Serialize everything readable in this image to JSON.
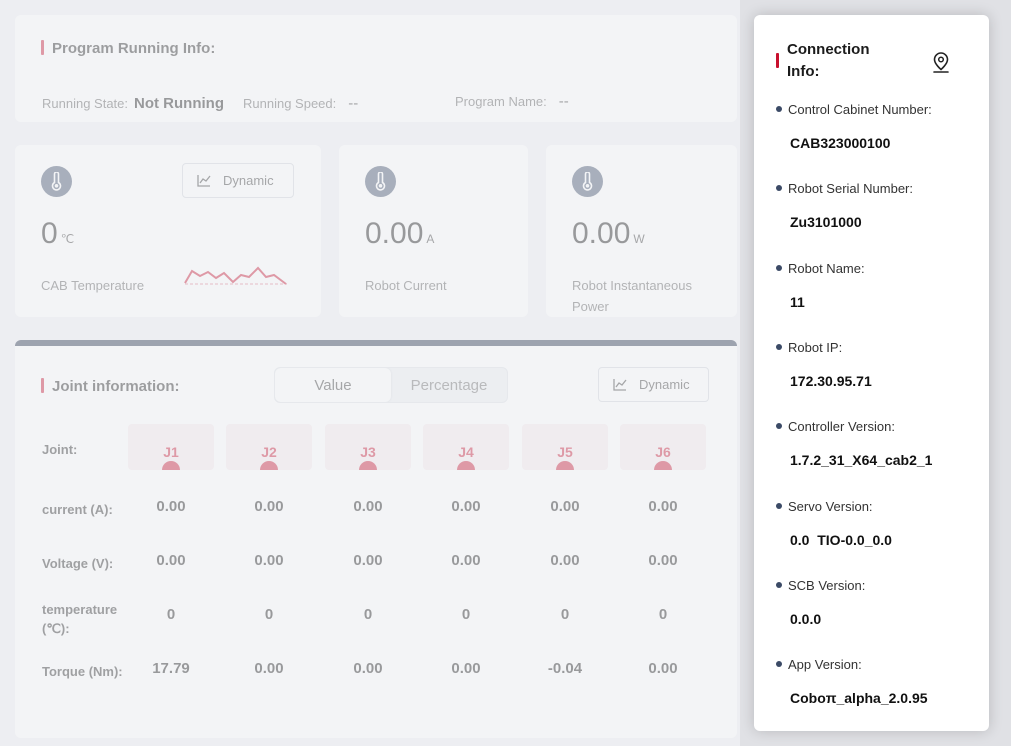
{
  "program": {
    "title": "Program Running Info:",
    "running_state_label": "Running State:",
    "running_state_value": "Not Running",
    "running_speed_label": "Running Speed:",
    "running_speed_value": "--",
    "program_name_label": "Program Name:",
    "program_name_value": "--"
  },
  "metrics": {
    "cab_temperature": {
      "value": "0",
      "unit": "℃",
      "label": "CAB Temperature",
      "button": "Dynamic"
    },
    "robot_current": {
      "value": "0.00",
      "unit": "A",
      "label": "Robot Current"
    },
    "robot_power": {
      "value": "0.00",
      "unit": "W",
      "label": "Robot Instantaneous Power"
    }
  },
  "joint": {
    "title": "Joint information:",
    "toggle": {
      "value_label": "Value",
      "percentage_label": "Percentage",
      "selected": "Value"
    },
    "dynamic_button": "Dynamic",
    "header_label": "Joint:",
    "joints": [
      "J1",
      "J2",
      "J3",
      "J4",
      "J5",
      "J6"
    ],
    "rows": [
      {
        "label": "current (A):",
        "values": [
          "0.00",
          "0.00",
          "0.00",
          "0.00",
          "0.00",
          "0.00"
        ]
      },
      {
        "label": "Voltage (V):",
        "values": [
          "0.00",
          "0.00",
          "0.00",
          "0.00",
          "0.00",
          "0.00"
        ]
      },
      {
        "label": "temperature (℃):",
        "values": [
          "0",
          "0",
          "0",
          "0",
          "0",
          "0"
        ]
      },
      {
        "label": "Torque (Nm):",
        "values": [
          "17.79",
          "0.00",
          "0.00",
          "0.00",
          "-0.04",
          "0.00"
        ]
      }
    ]
  },
  "connection": {
    "title": "Connection Info:",
    "items": [
      {
        "label": "Control Cabinet Number:",
        "value": "CAB323000100"
      },
      {
        "label": "Robot Serial Number:",
        "value": "Zu3101000"
      },
      {
        "label": "Robot Name:",
        "value": "11"
      },
      {
        "label": "Robot IP:",
        "value": "172.30.95.71"
      },
      {
        "label": "Controller Version:",
        "value": "1.7.2_31_X64_cab2_1"
      },
      {
        "label": "Servo Version:",
        "value": "0.0  TIO-0.0_0.0"
      },
      {
        "label": "SCB Version:",
        "value": "0.0.0"
      },
      {
        "label": "App Version:",
        "value": "Coboπ_alpha_2.0.95"
      }
    ]
  },
  "icons": {
    "metric_icon": "thermometer-icon",
    "dynamic_icon": "line-chart-icon",
    "connection_icon": "location-pin-icon"
  },
  "colors": {
    "accent": "#c8102e",
    "dark": "#1f2a44",
    "icon_bg": "#3b4a66"
  }
}
